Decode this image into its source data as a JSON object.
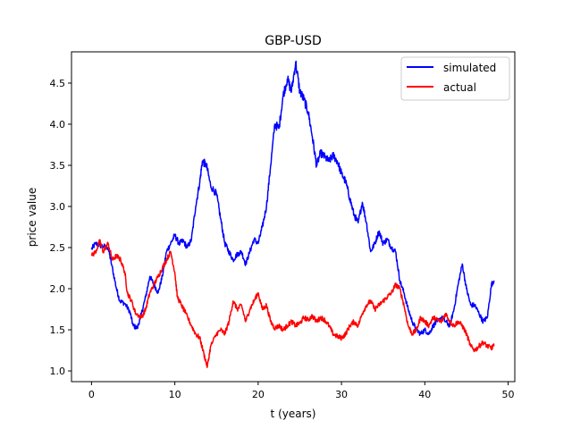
{
  "chart_data": {
    "type": "line",
    "title": "GBP-USD",
    "xlabel": "t (years)",
    "ylabel": "price value",
    "xlim": [
      -2.4,
      50.8
    ],
    "ylim": [
      0.87,
      4.88
    ],
    "xticks": [
      0,
      10,
      20,
      30,
      40,
      50
    ],
    "yticks": [
      1.0,
      1.5,
      2.0,
      2.5,
      3.0,
      3.5,
      4.0,
      4.5
    ],
    "ytick_labels": [
      "1.0",
      "1.5",
      "2.0",
      "2.5",
      "3.0",
      "3.5",
      "4.0",
      "4.5"
    ],
    "grid": false,
    "legend_position": "upper right",
    "series": [
      {
        "name": "simulated",
        "color": "#0000ff",
        "points": [
          [
            0,
            2.48
          ],
          [
            0.5,
            2.55
          ],
          [
            1.2,
            2.52
          ],
          [
            2,
            2.5
          ],
          [
            2.4,
            2.3
          ],
          [
            3,
            2.0
          ],
          [
            3.4,
            1.85
          ],
          [
            4,
            1.82
          ],
          [
            4.6,
            1.72
          ],
          [
            5,
            1.55
          ],
          [
            5.5,
            1.52
          ],
          [
            6,
            1.7
          ],
          [
            6.5,
            1.9
          ],
          [
            7,
            2.15
          ],
          [
            7.5,
            2.05
          ],
          [
            8,
            1.95
          ],
          [
            8.5,
            2.15
          ],
          [
            9,
            2.45
          ],
          [
            9.5,
            2.55
          ],
          [
            10,
            2.65
          ],
          [
            10.5,
            2.55
          ],
          [
            11,
            2.58
          ],
          [
            11.5,
            2.5
          ],
          [
            12,
            2.6
          ],
          [
            12.5,
            3.0
          ],
          [
            13,
            3.3
          ],
          [
            13.3,
            3.55
          ],
          [
            13.8,
            3.5
          ],
          [
            14.3,
            3.25
          ],
          [
            15,
            3.15
          ],
          [
            15.5,
            2.85
          ],
          [
            16,
            2.55
          ],
          [
            16.5,
            2.45
          ],
          [
            17,
            2.35
          ],
          [
            17.5,
            2.42
          ],
          [
            18,
            2.45
          ],
          [
            18.5,
            2.3
          ],
          [
            19,
            2.45
          ],
          [
            19.5,
            2.6
          ],
          [
            20,
            2.55
          ],
          [
            20.5,
            2.75
          ],
          [
            21,
            3.0
          ],
          [
            21.5,
            3.5
          ],
          [
            22,
            4.0
          ],
          [
            22.5,
            3.95
          ],
          [
            23,
            4.35
          ],
          [
            23.5,
            4.55
          ],
          [
            24,
            4.4
          ],
          [
            24.5,
            4.75
          ],
          [
            25,
            4.4
          ],
          [
            25.5,
            4.3
          ],
          [
            26,
            4.15
          ],
          [
            26.5,
            3.85
          ],
          [
            27,
            3.5
          ],
          [
            27.5,
            3.65
          ],
          [
            28,
            3.6
          ],
          [
            28.5,
            3.55
          ],
          [
            29,
            3.62
          ],
          [
            29.5,
            3.55
          ],
          [
            30,
            3.4
          ],
          [
            30.5,
            3.3
          ],
          [
            31,
            3.1
          ],
          [
            31.5,
            2.9
          ],
          [
            32,
            2.8
          ],
          [
            32.5,
            3.05
          ],
          [
            33,
            2.8
          ],
          [
            33.5,
            2.45
          ],
          [
            34,
            2.55
          ],
          [
            34.5,
            2.7
          ],
          [
            35,
            2.55
          ],
          [
            35.5,
            2.6
          ],
          [
            36,
            2.5
          ],
          [
            36.5,
            2.45
          ],
          [
            37,
            2.1
          ],
          [
            37.5,
            1.95
          ],
          [
            38,
            1.75
          ],
          [
            38.5,
            1.6
          ],
          [
            39,
            1.5
          ],
          [
            39.5,
            1.45
          ],
          [
            40,
            1.5
          ],
          [
            40.5,
            1.45
          ],
          [
            41,
            1.55
          ],
          [
            41.5,
            1.6
          ],
          [
            42,
            1.65
          ],
          [
            42.5,
            1.6
          ],
          [
            43,
            1.55
          ],
          [
            43.5,
            1.75
          ],
          [
            44,
            2.05
          ],
          [
            44.5,
            2.3
          ],
          [
            45,
            2.0
          ],
          [
            45.5,
            1.8
          ],
          [
            46,
            1.8
          ],
          [
            46.5,
            1.7
          ],
          [
            47,
            1.6
          ],
          [
            47.5,
            1.65
          ],
          [
            48,
            2.05
          ],
          [
            48.3,
            2.1
          ]
        ]
      },
      {
        "name": "actual",
        "color": "#ff0000",
        "points": [
          [
            0,
            2.4
          ],
          [
            0.5,
            2.45
          ],
          [
            1,
            2.58
          ],
          [
            1.4,
            2.45
          ],
          [
            2,
            2.55
          ],
          [
            2.5,
            2.35
          ],
          [
            3,
            2.4
          ],
          [
            3.5,
            2.35
          ],
          [
            4,
            2.2
          ],
          [
            4.3,
            1.95
          ],
          [
            4.8,
            1.85
          ],
          [
            5.3,
            1.7
          ],
          [
            6,
            1.65
          ],
          [
            6.5,
            1.75
          ],
          [
            7,
            1.95
          ],
          [
            7.5,
            2.05
          ],
          [
            8,
            2.15
          ],
          [
            8.5,
            2.25
          ],
          [
            9,
            2.35
          ],
          [
            9.5,
            2.45
          ],
          [
            10,
            2.2
          ],
          [
            10.3,
            1.9
          ],
          [
            10.8,
            1.8
          ],
          [
            11.3,
            1.7
          ],
          [
            12,
            1.55
          ],
          [
            12.5,
            1.45
          ],
          [
            13,
            1.4
          ],
          [
            13.5,
            1.2
          ],
          [
            13.9,
            1.05
          ],
          [
            14.3,
            1.3
          ],
          [
            15,
            1.45
          ],
          [
            15.5,
            1.5
          ],
          [
            16,
            1.45
          ],
          [
            16.5,
            1.6
          ],
          [
            17,
            1.85
          ],
          [
            17.5,
            1.75
          ],
          [
            18,
            1.8
          ],
          [
            18.5,
            1.6
          ],
          [
            19,
            1.75
          ],
          [
            19.5,
            1.85
          ],
          [
            20,
            1.95
          ],
          [
            20.5,
            1.75
          ],
          [
            21,
            1.8
          ],
          [
            21.5,
            1.6
          ],
          [
            22,
            1.52
          ],
          [
            22.5,
            1.55
          ],
          [
            23,
            1.5
          ],
          [
            23.5,
            1.55
          ],
          [
            24,
            1.6
          ],
          [
            24.5,
            1.55
          ],
          [
            25,
            1.58
          ],
          [
            25.5,
            1.65
          ],
          [
            26,
            1.62
          ],
          [
            26.5,
            1.67
          ],
          [
            27,
            1.6
          ],
          [
            27.5,
            1.65
          ],
          [
            28,
            1.62
          ],
          [
            28.5,
            1.55
          ],
          [
            29,
            1.45
          ],
          [
            29.5,
            1.42
          ],
          [
            30,
            1.4
          ],
          [
            30.5,
            1.45
          ],
          [
            31,
            1.55
          ],
          [
            31.5,
            1.6
          ],
          [
            32,
            1.55
          ],
          [
            32.5,
            1.7
          ],
          [
            33,
            1.8
          ],
          [
            33.5,
            1.85
          ],
          [
            34,
            1.75
          ],
          [
            34.5,
            1.8
          ],
          [
            35,
            1.85
          ],
          [
            35.5,
            1.9
          ],
          [
            36,
            1.95
          ],
          [
            36.5,
            2.05
          ],
          [
            37,
            2.0
          ],
          [
            37.5,
            1.8
          ],
          [
            38,
            1.55
          ],
          [
            38.5,
            1.45
          ],
          [
            39,
            1.5
          ],
          [
            39.5,
            1.65
          ],
          [
            40,
            1.6
          ],
          [
            40.5,
            1.55
          ],
          [
            41,
            1.65
          ],
          [
            41.5,
            1.62
          ],
          [
            42,
            1.6
          ],
          [
            42.5,
            1.7
          ],
          [
            43,
            1.6
          ],
          [
            43.5,
            1.55
          ],
          [
            44,
            1.6
          ],
          [
            44.5,
            1.55
          ],
          [
            45,
            1.45
          ],
          [
            45.5,
            1.3
          ],
          [
            46,
            1.25
          ],
          [
            46.5,
            1.3
          ],
          [
            47,
            1.35
          ],
          [
            47.5,
            1.3
          ],
          [
            48,
            1.28
          ],
          [
            48.3,
            1.3
          ]
        ]
      }
    ]
  }
}
